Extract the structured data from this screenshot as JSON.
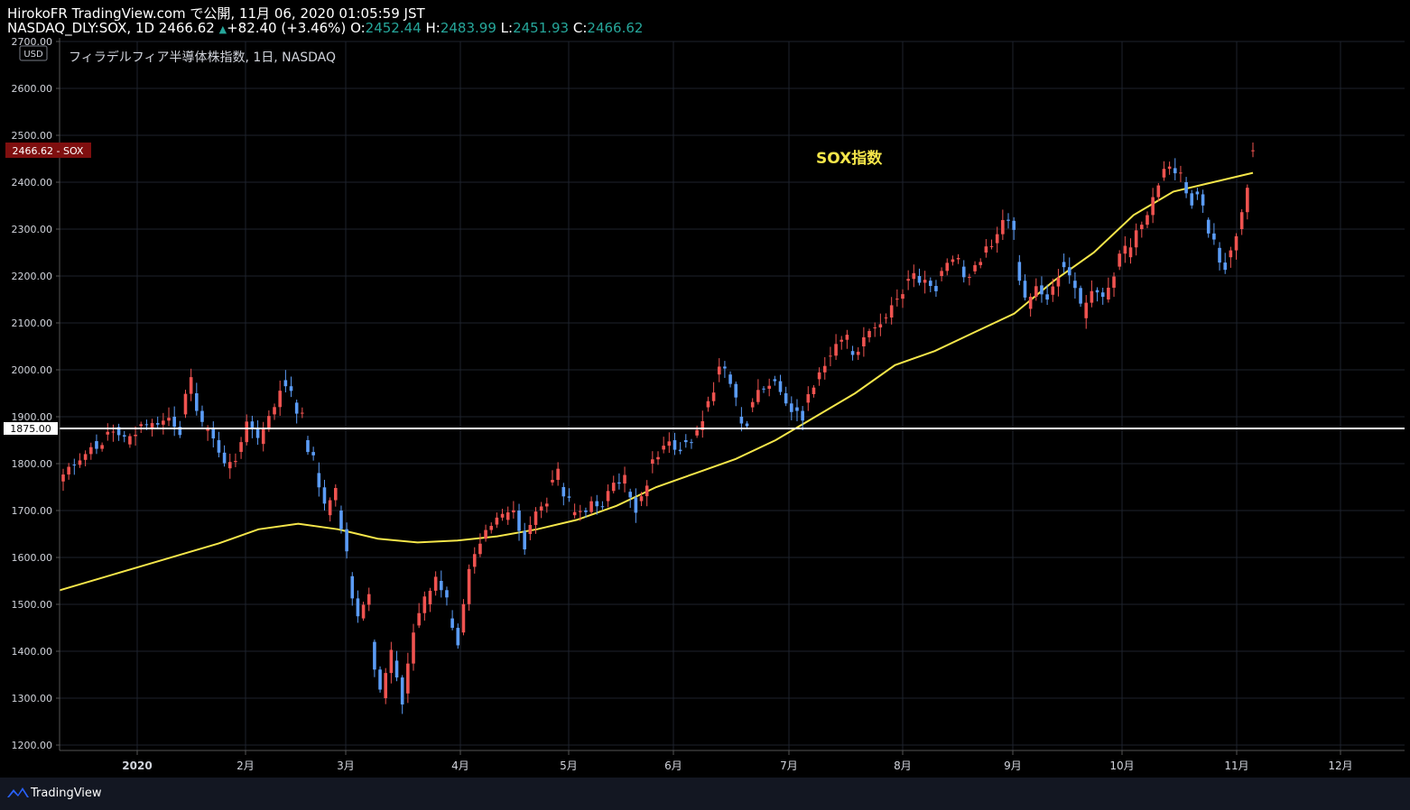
{
  "header": {
    "publish_line": "HirokoFR TradingView.com で公開, 11月 06, 2020 01:05:59 JST",
    "symbol": "NASDAQ_DLY:SOX, 1D",
    "last": "2466.62",
    "change": "+82.40 (+3.46%)",
    "o_label": "O:",
    "o": "2452.44",
    "h_label": "H:",
    "h": "2483.99",
    "l_label": "L:",
    "l": "2451.93",
    "c_label": "C:",
    "c": "2466.62"
  },
  "footer": {
    "brand": "TradingView"
  },
  "chart_data": {
    "type": "candlestick",
    "title": "フィラデルフィア半導体株指数, 1日, NASDAQ",
    "annotation": "SOX指数",
    "currency_badge": "USD",
    "price_label": "2466.62 - SOX",
    "hline_value": 1875,
    "hline_label": "1875.00",
    "ylim": [
      1200,
      2700
    ],
    "y_ticks": [
      "1200.00",
      "1300.00",
      "1400.00",
      "1500.00",
      "1600.00",
      "1700.00",
      "1800.00",
      "1900.00",
      "2000.00",
      "2100.00",
      "2200.00",
      "2300.00",
      "2400.00",
      "2500.00",
      "2600.00",
      "2700.00"
    ],
    "x_ticks": [
      "2020",
      "2月",
      "3月",
      "4月",
      "5月",
      "6月",
      "7月",
      "8月",
      "9月",
      "10月",
      "11月",
      "12月"
    ],
    "grid": true,
    "colors": {
      "up": "#ef5350",
      "down": "#5b9cf6",
      "ma": "#f5e64a",
      "hline": "#ffffff",
      "background": "#000000",
      "grid": "#1e222d"
    },
    "closes": [
      [
        1762,
        1792
      ],
      [
        1798,
        1812
      ],
      [
        1808,
        1835
      ],
      [
        1848,
        1832
      ],
      [
        1862,
        1870
      ],
      [
        1878,
        1852
      ],
      [
        1841,
        1870
      ],
      [
        1880,
        1888
      ],
      [
        1876,
        1890
      ],
      [
        1883,
        1898
      ],
      [
        1900,
        1870
      ],
      [
        1905,
        1975
      ],
      [
        1950,
        1890
      ],
      [
        1870,
        1860
      ],
      [
        1850,
        1800
      ],
      [
        1790,
        1810
      ],
      [
        1825,
        1880
      ],
      [
        1890,
        1860
      ],
      [
        1842,
        1905
      ],
      [
        1905,
        1950
      ],
      [
        1978,
        1958
      ],
      [
        1930,
        1900
      ],
      [
        1850,
        1810
      ],
      [
        1780,
        1720
      ],
      [
        1690,
        1750
      ],
      [
        1700,
        1610
      ],
      [
        1560,
        1480
      ],
      [
        1470,
        1530
      ],
      [
        1420,
        1320
      ],
      [
        1300,
        1400
      ],
      [
        1380,
        1290
      ],
      [
        1310,
        1440
      ],
      [
        1455,
        1510
      ],
      [
        1500,
        1560
      ],
      [
        1550,
        1520
      ],
      [
        1470,
        1420
      ],
      [
        1440,
        1570
      ],
      [
        1580,
        1620
      ],
      [
        1640,
        1660
      ],
      [
        1670,
        1690
      ],
      [
        1680,
        1710
      ],
      [
        1700,
        1620
      ],
      [
        1650,
        1700
      ],
      [
        1700,
        1710
      ],
      [
        1760,
        1780
      ],
      [
        1750,
        1730
      ],
      [
        1690,
        1700
      ],
      [
        1700,
        1710
      ],
      [
        1720,
        1700
      ],
      [
        1720,
        1760
      ],
      [
        1760,
        1770
      ],
      [
        1740,
        1700
      ],
      [
        1720,
        1760
      ],
      [
        1800,
        1810
      ],
      [
        1830,
        1840
      ],
      [
        1850,
        1820
      ],
      [
        1850,
        1855
      ],
      [
        1860,
        1900
      ],
      [
        1920,
        1945
      ],
      [
        1990,
        2010
      ],
      [
        1990,
        1950
      ],
      [
        1900,
        1880
      ],
      [
        1920,
        1960
      ],
      [
        1960,
        1970
      ],
      [
        1980,
        1960
      ],
      [
        1950,
        1920
      ],
      [
        1920,
        1900
      ],
      [
        1930,
        1970
      ],
      [
        1980,
        2010
      ],
      [
        2030,
        2050
      ],
      [
        2060,
        2070
      ],
      [
        2040,
        2030
      ],
      [
        2050,
        2080
      ],
      [
        2090,
        2100
      ],
      [
        2110,
        2130
      ],
      [
        2150,
        2170
      ],
      [
        2190,
        2210
      ],
      [
        2200,
        2190
      ],
      [
        2190,
        2170
      ],
      [
        2200,
        2220
      ],
      [
        2230,
        2240
      ],
      [
        2220,
        2190
      ],
      [
        2210,
        2230
      ],
      [
        2250,
        2260
      ],
      [
        2270,
        2310
      ],
      [
        2320,
        2300
      ],
      [
        2230,
        2150
      ],
      [
        2130,
        2170
      ],
      [
        2180,
        2140
      ],
      [
        2160,
        2190
      ],
      [
        2230,
        2210
      ],
      [
        2190,
        2140
      ],
      [
        2110,
        2170
      ],
      [
        2170,
        2150
      ],
      [
        2150,
        2200
      ],
      [
        2220,
        2260
      ],
      [
        2240,
        2300
      ],
      [
        2300,
        2320
      ],
      [
        2330,
        2400
      ],
      [
        2410,
        2440
      ],
      [
        2430,
        2420
      ],
      [
        2400,
        2360
      ],
      [
        2380,
        2350
      ],
      [
        2320,
        2280
      ],
      [
        2260,
        2210
      ],
      [
        2240,
        2280
      ],
      [
        2300,
        2380
      ],
      [
        2466,
        2466
      ]
    ],
    "ma_200": [
      1530,
      1555,
      1580,
      1605,
      1630,
      1660,
      1672,
      1660,
      1640,
      1632,
      1636,
      1645,
      1660,
      1680,
      1710,
      1750,
      1780,
      1810,
      1850,
      1900,
      1950,
      2010,
      2040,
      2080,
      2120,
      2190,
      2250,
      2330,
      2380,
      2400,
      2420
    ]
  }
}
